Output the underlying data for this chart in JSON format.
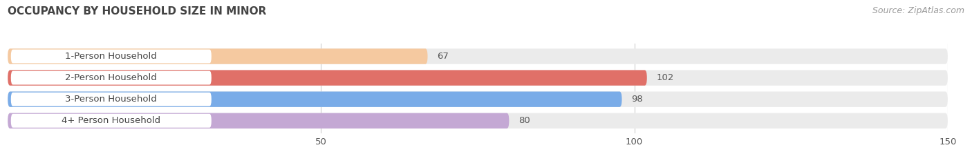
{
  "title": "OCCUPANCY BY HOUSEHOLD SIZE IN MINOR",
  "source": "Source: ZipAtlas.com",
  "categories": [
    "1-Person Household",
    "2-Person Household",
    "3-Person Household",
    "4+ Person Household"
  ],
  "values": [
    67,
    102,
    98,
    80
  ],
  "bar_colors": [
    "#f5c9a0",
    "#e07068",
    "#7aace8",
    "#c4a8d4"
  ],
  "bar_bg_color": "#ebebeb",
  "xlim": [
    0,
    150
  ],
  "xticks": [
    50,
    100,
    150
  ],
  "bar_height": 0.72,
  "label_fontsize": 9.5,
  "value_fontsize": 9.5,
  "title_fontsize": 11,
  "source_fontsize": 9,
  "background_color": "#ffffff",
  "grid_color": "#cccccc",
  "text_color": "#555555",
  "title_color": "#444444"
}
